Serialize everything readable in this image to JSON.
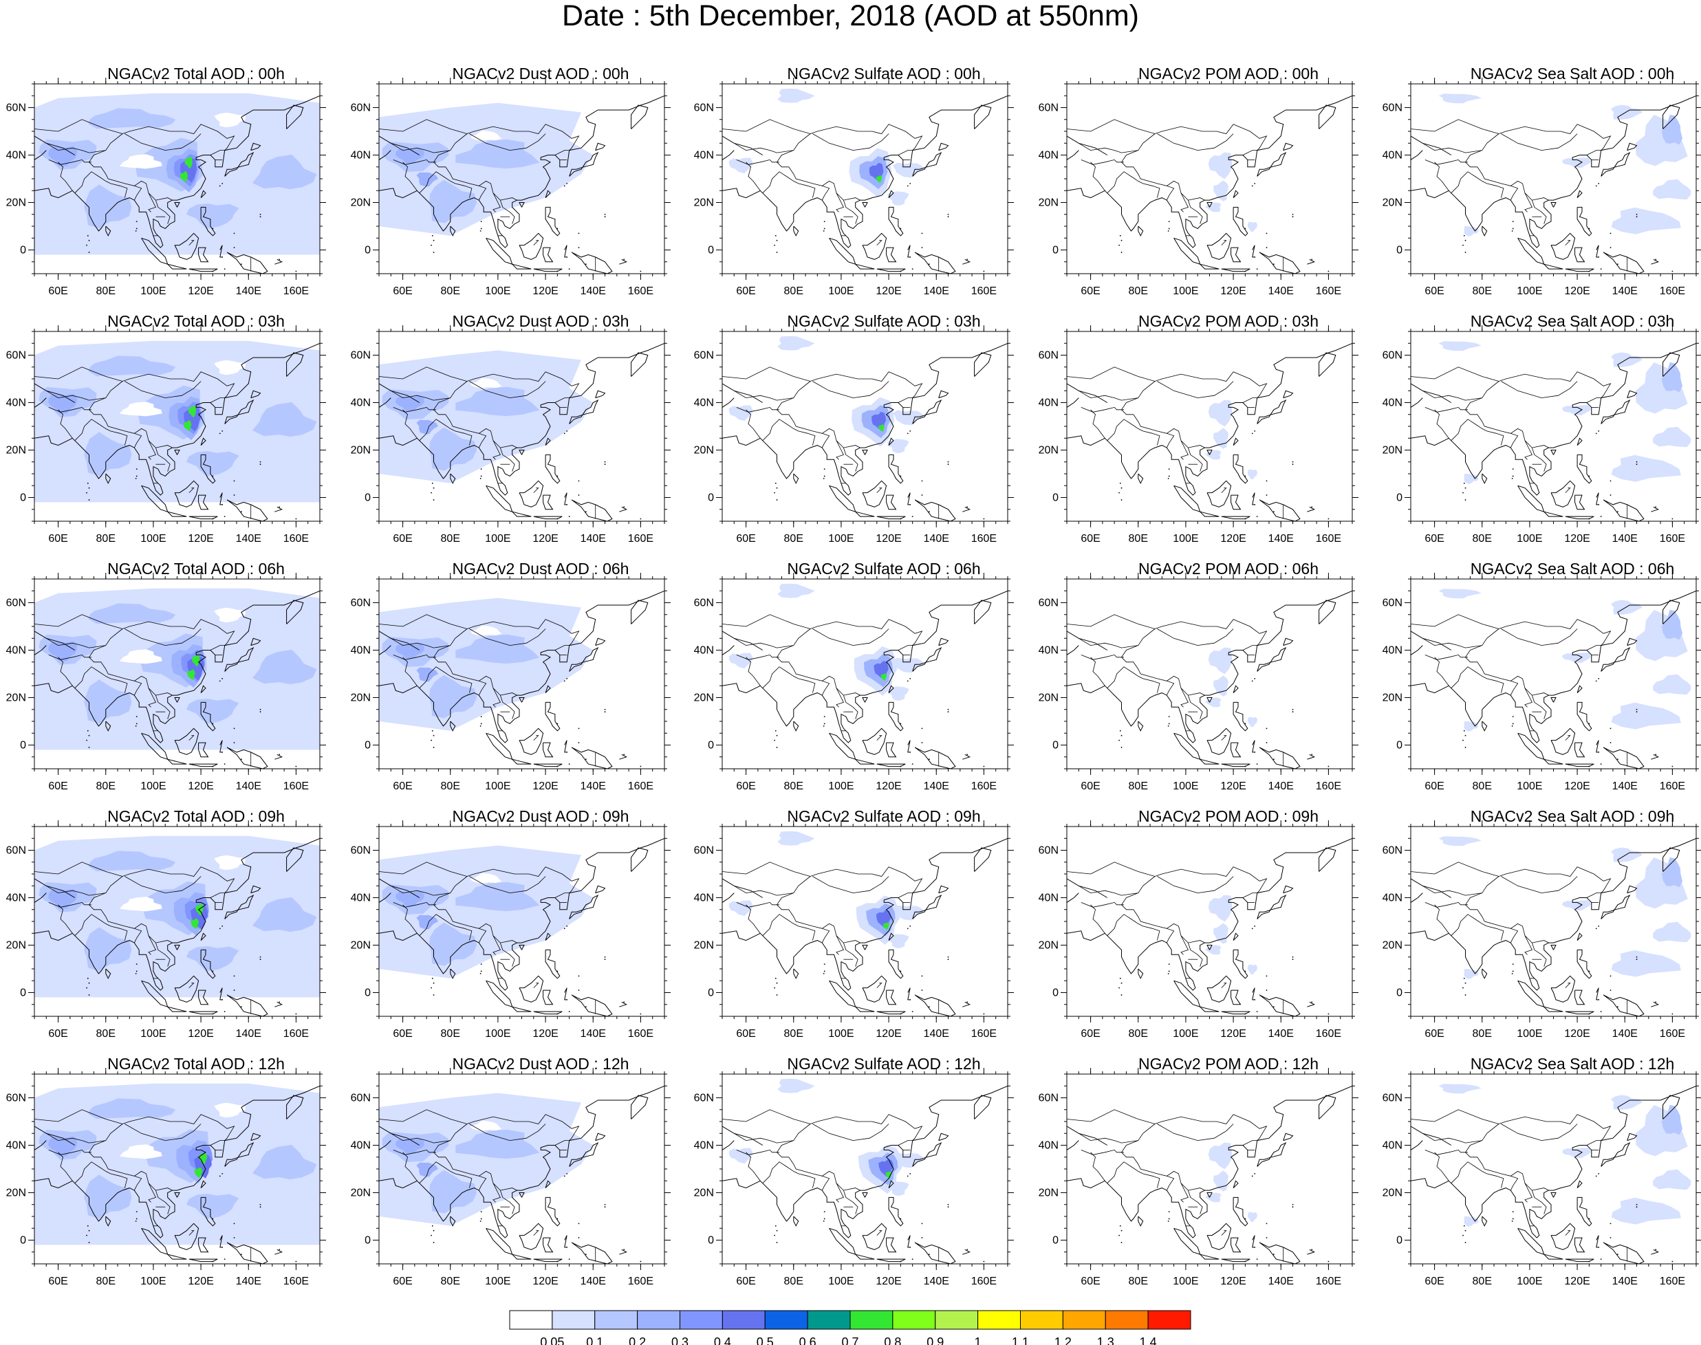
{
  "title": "Date : 5th December, 2018 (AOD at 550nm)",
  "axes": {
    "x_ticks": [
      "60E",
      "80E",
      "100E",
      "120E",
      "140E",
      "160E"
    ],
    "x_values": [
      60,
      80,
      100,
      120,
      140,
      160
    ],
    "y_ticks": [
      "60N",
      "40N",
      "20N",
      "0"
    ],
    "y_values": [
      60,
      40,
      20,
      0
    ],
    "lon_range": [
      50,
      170
    ],
    "lat_range": [
      -10,
      70
    ]
  },
  "colors": {
    "outline": "#000000",
    "bins": [
      "#ffffff",
      "#d6e0ff",
      "#b5c7ff",
      "#9cb2ff",
      "#8296ff",
      "#6673f0",
      "#0d63e6",
      "#00998c",
      "#33e633",
      "#80ff1a",
      "#b3f24d",
      "#ffff00",
      "#ffcc00",
      "#ffa600",
      "#ff7a00",
      "#ff1a00"
    ]
  },
  "colorbar": {
    "labels": [
      "0.05",
      "0.1",
      "0.2",
      "0.3",
      "0.4",
      "0.5",
      "0.6",
      "0.7",
      "0.8",
      "0.9",
      "1",
      "1.1",
      "1.2",
      "1.3",
      "1.4"
    ],
    "values": [
      0.05,
      0.1,
      0.2,
      0.3,
      0.4,
      0.5,
      0.6,
      0.7,
      0.8,
      0.9,
      1,
      1.1,
      1.2,
      1.3,
      1.4
    ]
  },
  "column_types": [
    "total",
    "dust",
    "sulfate",
    "pom",
    "seasalt"
  ],
  "panels": [
    [
      "NGACv2 Total AOD : 00h",
      "NGACv2 Dust AOD : 00h",
      "NGACv2 Sulfate AOD : 00h",
      "NGACv2 POM AOD : 00h",
      "NGACv2 Sea Salt AOD : 00h"
    ],
    [
      "NGACv2 Total AOD : 03h",
      "NGACv2 Dust AOD : 03h",
      "NGACv2 Sulfate AOD : 03h",
      "NGACv2 POM AOD : 03h",
      "NGACv2 Sea Salt AOD : 03h"
    ],
    [
      "NGACv2 Total AOD : 06h",
      "NGACv2 Dust AOD : 06h",
      "NGACv2 Sulfate AOD : 06h",
      "NGACv2 POM AOD : 06h",
      "NGACv2 Sea Salt AOD : 06h"
    ],
    [
      "NGACv2 Total AOD : 09h",
      "NGACv2 Dust AOD : 09h",
      "NGACv2 Sulfate AOD : 09h",
      "NGACv2 POM AOD : 09h",
      "NGACv2 Sea Salt  AOD : 09h"
    ],
    [
      "NGACv2 Total AOD  : 12h",
      "NGACv2 Dust AOD : 12h",
      "NGACv2 Sulfate AOD : 12h",
      "NGACv2 POM  AOD : 12h",
      "NGACv2 Sea Salt  AOD : 12h"
    ]
  ]
}
